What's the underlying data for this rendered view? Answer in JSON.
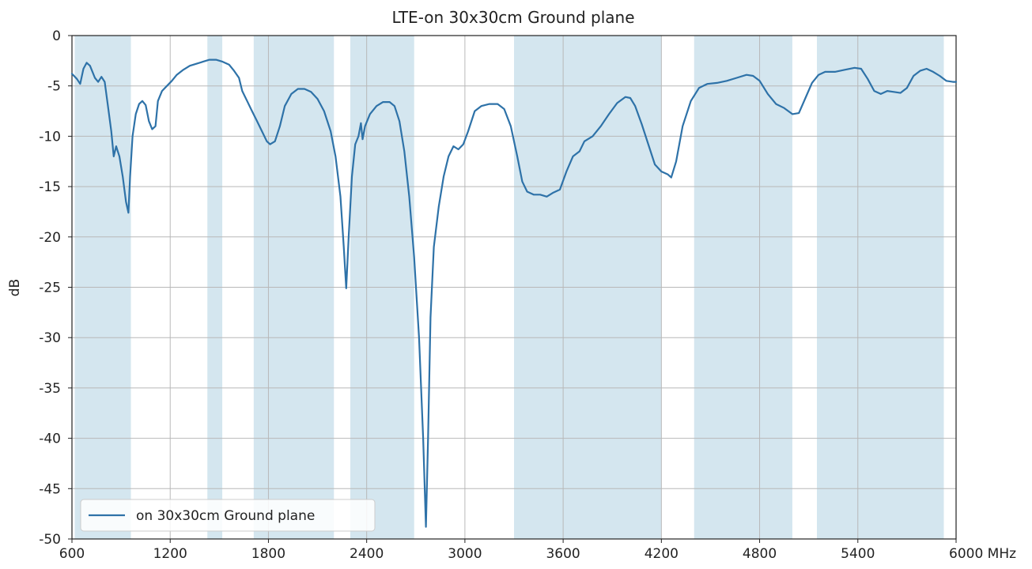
{
  "chart_data": {
    "type": "line",
    "title": "LTE-on 30x30cm Ground plane",
    "xlabel": "",
    "x_unit": "MHz",
    "ylabel": "dB",
    "xlim": [
      600,
      6000
    ],
    "ylim": [
      -50,
      0
    ],
    "grid": true,
    "legend_position": "bottom-left",
    "x_ticks": [
      600,
      1200,
      1800,
      2400,
      3000,
      3600,
      4200,
      4800,
      5400,
      6000
    ],
    "x_tick_labels": [
      "600",
      "1200",
      "1800",
      "2400",
      "3000",
      "3600",
      "4200",
      "4800",
      "5400",
      "6000 MHz"
    ],
    "y_ticks": [
      0,
      -5,
      -10,
      -15,
      -20,
      -25,
      -30,
      -35,
      -40,
      -45,
      -50
    ],
    "y_tick_labels": [
      "0",
      "-5",
      "-10",
      "-15",
      "-20",
      "-25",
      "-30",
      "-35",
      "-40",
      "-45",
      "-50"
    ],
    "bands": [
      [
        617,
        960
      ],
      [
        1427,
        1518
      ],
      [
        1710,
        2200
      ],
      [
        2300,
        2690
      ],
      [
        3300,
        4200
      ],
      [
        4400,
        5000
      ],
      [
        5150,
        5925
      ]
    ],
    "series": [
      {
        "name": "on 30x30cm Ground plane",
        "color": "#2e72a8",
        "points": [
          [
            600,
            -3.8
          ],
          [
            630,
            -4.3
          ],
          [
            650,
            -4.8
          ],
          [
            670,
            -3.3
          ],
          [
            690,
            -2.7
          ],
          [
            710,
            -3.0
          ],
          [
            740,
            -4.2
          ],
          [
            760,
            -4.6
          ],
          [
            780,
            -4.1
          ],
          [
            800,
            -4.6
          ],
          [
            820,
            -7.0
          ],
          [
            840,
            -9.5
          ],
          [
            855,
            -12.0
          ],
          [
            870,
            -11.0
          ],
          [
            890,
            -12.0
          ],
          [
            910,
            -14.0
          ],
          [
            930,
            -16.5
          ],
          [
            945,
            -17.6
          ],
          [
            955,
            -14.0
          ],
          [
            970,
            -10.0
          ],
          [
            990,
            -7.8
          ],
          [
            1010,
            -6.8
          ],
          [
            1030,
            -6.5
          ],
          [
            1050,
            -6.9
          ],
          [
            1070,
            -8.5
          ],
          [
            1090,
            -9.3
          ],
          [
            1110,
            -9.0
          ],
          [
            1125,
            -6.5
          ],
          [
            1150,
            -5.5
          ],
          [
            1180,
            -5.0
          ],
          [
            1210,
            -4.5
          ],
          [
            1240,
            -3.9
          ],
          [
            1280,
            -3.4
          ],
          [
            1320,
            -3.0
          ],
          [
            1360,
            -2.8
          ],
          [
            1400,
            -2.6
          ],
          [
            1440,
            -2.4
          ],
          [
            1480,
            -2.4
          ],
          [
            1520,
            -2.6
          ],
          [
            1560,
            -2.9
          ],
          [
            1590,
            -3.5
          ],
          [
            1620,
            -4.2
          ],
          [
            1640,
            -5.5
          ],
          [
            1670,
            -6.5
          ],
          [
            1700,
            -7.5
          ],
          [
            1730,
            -8.5
          ],
          [
            1760,
            -9.5
          ],
          [
            1790,
            -10.5
          ],
          [
            1810,
            -10.8
          ],
          [
            1840,
            -10.5
          ],
          [
            1870,
            -9.0
          ],
          [
            1900,
            -7.0
          ],
          [
            1940,
            -5.8
          ],
          [
            1980,
            -5.3
          ],
          [
            2020,
            -5.3
          ],
          [
            2060,
            -5.6
          ],
          [
            2100,
            -6.3
          ],
          [
            2140,
            -7.5
          ],
          [
            2180,
            -9.5
          ],
          [
            2210,
            -12.0
          ],
          [
            2240,
            -16.0
          ],
          [
            2260,
            -21.0
          ],
          [
            2275,
            -25.1
          ],
          [
            2290,
            -20.0
          ],
          [
            2310,
            -14.0
          ],
          [
            2330,
            -10.8
          ],
          [
            2350,
            -10.0
          ],
          [
            2365,
            -8.7
          ],
          [
            2375,
            -10.3
          ],
          [
            2390,
            -9.0
          ],
          [
            2420,
            -7.8
          ],
          [
            2460,
            -7.0
          ],
          [
            2500,
            -6.6
          ],
          [
            2540,
            -6.6
          ],
          [
            2570,
            -7.0
          ],
          [
            2600,
            -8.5
          ],
          [
            2630,
            -11.5
          ],
          [
            2660,
            -16.0
          ],
          [
            2690,
            -22.0
          ],
          [
            2720,
            -30.0
          ],
          [
            2745,
            -40.0
          ],
          [
            2762,
            -48.8
          ],
          [
            2775,
            -40.0
          ],
          [
            2790,
            -28.0
          ],
          [
            2810,
            -21.0
          ],
          [
            2840,
            -17.0
          ],
          [
            2870,
            -14.0
          ],
          [
            2900,
            -12.0
          ],
          [
            2930,
            -11.0
          ],
          [
            2960,
            -11.3
          ],
          [
            2990,
            -10.8
          ],
          [
            3020,
            -9.5
          ],
          [
            3060,
            -7.5
          ],
          [
            3100,
            -7.0
          ],
          [
            3150,
            -6.8
          ],
          [
            3200,
            -6.8
          ],
          [
            3240,
            -7.3
          ],
          [
            3280,
            -9.0
          ],
          [
            3320,
            -12.0
          ],
          [
            3350,
            -14.5
          ],
          [
            3380,
            -15.5
          ],
          [
            3420,
            -15.8
          ],
          [
            3460,
            -15.8
          ],
          [
            3500,
            -16.0
          ],
          [
            3540,
            -15.6
          ],
          [
            3580,
            -15.3
          ],
          [
            3620,
            -13.5
          ],
          [
            3660,
            -12.0
          ],
          [
            3700,
            -11.5
          ],
          [
            3730,
            -10.5
          ],
          [
            3780,
            -10.0
          ],
          [
            3830,
            -9.0
          ],
          [
            3880,
            -7.8
          ],
          [
            3930,
            -6.7
          ],
          [
            3980,
            -6.1
          ],
          [
            4010,
            -6.2
          ],
          [
            4040,
            -7.0
          ],
          [
            4080,
            -8.8
          ],
          [
            4120,
            -10.8
          ],
          [
            4160,
            -12.8
          ],
          [
            4200,
            -13.5
          ],
          [
            4240,
            -13.8
          ],
          [
            4260,
            -14.1
          ],
          [
            4290,
            -12.5
          ],
          [
            4330,
            -9.0
          ],
          [
            4380,
            -6.5
          ],
          [
            4430,
            -5.2
          ],
          [
            4480,
            -4.8
          ],
          [
            4540,
            -4.7
          ],
          [
            4600,
            -4.5
          ],
          [
            4660,
            -4.2
          ],
          [
            4720,
            -3.9
          ],
          [
            4760,
            -4.0
          ],
          [
            4800,
            -4.5
          ],
          [
            4850,
            -5.8
          ],
          [
            4900,
            -6.8
          ],
          [
            4950,
            -7.2
          ],
          [
            5000,
            -7.8
          ],
          [
            5040,
            -7.7
          ],
          [
            5080,
            -6.2
          ],
          [
            5120,
            -4.7
          ],
          [
            5160,
            -3.9
          ],
          [
            5200,
            -3.6
          ],
          [
            5260,
            -3.6
          ],
          [
            5320,
            -3.4
          ],
          [
            5380,
            -3.2
          ],
          [
            5420,
            -3.3
          ],
          [
            5460,
            -4.3
          ],
          [
            5500,
            -5.5
          ],
          [
            5540,
            -5.8
          ],
          [
            5580,
            -5.5
          ],
          [
            5620,
            -5.6
          ],
          [
            5660,
            -5.7
          ],
          [
            5700,
            -5.2
          ],
          [
            5740,
            -4.0
          ],
          [
            5780,
            -3.5
          ],
          [
            5820,
            -3.3
          ],
          [
            5860,
            -3.6
          ],
          [
            5900,
            -4.0
          ],
          [
            5940,
            -4.5
          ],
          [
            5980,
            -4.6
          ],
          [
            6000,
            -4.6
          ]
        ]
      }
    ],
    "colors": {
      "band_fill": "#d4e6ef",
      "line": "#2e72a8",
      "grid": "#b8b8b8",
      "axes": "#222222"
    }
  }
}
